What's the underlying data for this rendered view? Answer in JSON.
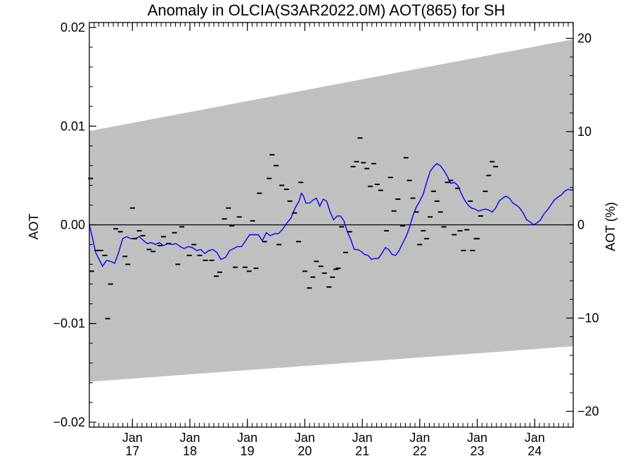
{
  "chart_data": {
    "type": "line",
    "title": "Anomaly in OLCIA(S3AR2022.0M) AOT(865) for SH",
    "xlabel": "",
    "ylabel": "AOT",
    "ylabel_right": "AOT (%)",
    "xlim": [
      2016.25,
      2024.67
    ],
    "ylim": [
      -0.0205,
      0.0205
    ],
    "ylim_right": [
      -21.7,
      21.7
    ],
    "y_ticks": [
      {
        "value": -0.02,
        "label": "−0.02"
      },
      {
        "value": -0.01,
        "label": "−0.01"
      },
      {
        "value": 0.0,
        "label": "0.00"
      },
      {
        "value": 0.01,
        "label": "0.01"
      },
      {
        "value": 0.02,
        "label": "0.02"
      }
    ],
    "y_minor_step": 0.002,
    "y_right_ticks": [
      {
        "value": -20,
        "label": "−20"
      },
      {
        "value": -10,
        "label": "−10"
      },
      {
        "value": 0,
        "label": "0"
      },
      {
        "value": 10,
        "label": "10"
      },
      {
        "value": 20,
        "label": "20"
      }
    ],
    "y_right_minor_step": 2,
    "x_ticks": [
      {
        "value": 2017.0,
        "month": "Jan",
        "year": "17"
      },
      {
        "value": 2018.0,
        "month": "Jan",
        "year": "18"
      },
      {
        "value": 2019.0,
        "month": "Jan",
        "year": "19"
      },
      {
        "value": 2020.0,
        "month": "Jan",
        "year": "20"
      },
      {
        "value": 2021.0,
        "month": "Jan",
        "year": "21"
      },
      {
        "value": 2022.0,
        "month": "Jan",
        "year": "22"
      },
      {
        "value": 2023.0,
        "month": "Jan",
        "year": "23"
      },
      {
        "value": 2024.0,
        "month": "Jan",
        "year": "24"
      }
    ],
    "x_minor_step": 0.08333,
    "envelope": {
      "color": "#c0c0c0",
      "upper": [
        [
          2016.25,
          0.0095
        ],
        [
          2024.67,
          0.0188
        ]
      ],
      "lower": [
        [
          2016.25,
          -0.0159
        ],
        [
          2024.67,
          -0.0123
        ]
      ]
    },
    "zero_line": 0.0,
    "series": [
      {
        "style": "line",
        "color": "#0000ff",
        "points": [
          [
            2016.25,
            0.0
          ],
          [
            2016.3,
            -0.0012
          ],
          [
            2016.36,
            -0.0028
          ],
          [
            2016.42,
            -0.0035
          ],
          [
            2016.48,
            -0.0042
          ],
          [
            2016.55,
            -0.0036
          ],
          [
            2016.62,
            -0.0037
          ],
          [
            2016.69,
            -0.0039
          ],
          [
            2016.76,
            -0.0028
          ],
          [
            2016.83,
            -0.0014
          ],
          [
            2016.9,
            -0.0012
          ],
          [
            2016.97,
            -0.0014
          ],
          [
            2017.04,
            -0.0014
          ],
          [
            2017.12,
            -0.0012
          ],
          [
            2017.19,
            -0.0016
          ],
          [
            2017.26,
            -0.0019
          ],
          [
            2017.33,
            -0.0018
          ],
          [
            2017.4,
            -0.002
          ],
          [
            2017.47,
            -0.0018
          ],
          [
            2017.54,
            -0.0021
          ],
          [
            2017.62,
            -0.0019
          ],
          [
            2017.69,
            -0.002
          ],
          [
            2017.76,
            -0.0019
          ],
          [
            2017.83,
            -0.0022
          ],
          [
            2017.9,
            -0.0024
          ],
          [
            2017.97,
            -0.0022
          ],
          [
            2018.04,
            -0.0023
          ],
          [
            2018.12,
            -0.0026
          ],
          [
            2018.19,
            -0.0025
          ],
          [
            2018.26,
            -0.0029
          ],
          [
            2018.33,
            -0.0026
          ],
          [
            2018.4,
            -0.0025
          ],
          [
            2018.47,
            -0.0028
          ],
          [
            2018.54,
            -0.0035
          ],
          [
            2018.62,
            -0.0033
          ],
          [
            2018.69,
            -0.0026
          ],
          [
            2018.76,
            -0.0024
          ],
          [
            2018.83,
            -0.0022
          ],
          [
            2018.9,
            -0.0022
          ],
          [
            2018.97,
            -0.0016
          ],
          [
            2019.04,
            -0.001
          ],
          [
            2019.12,
            -0.001
          ],
          [
            2019.19,
            -0.001
          ],
          [
            2019.26,
            -0.0016
          ],
          [
            2019.33,
            -0.0008
          ],
          [
            2019.4,
            -0.0011
          ],
          [
            2019.47,
            -0.0009
          ],
          [
            2019.54,
            -0.0009
          ],
          [
            2019.62,
            -0.0004
          ],
          [
            2019.69,
            0.0002
          ],
          [
            2019.76,
            0.0007
          ],
          [
            2019.83,
            0.0017
          ],
          [
            2019.9,
            0.0024
          ],
          [
            2019.94,
            0.0032
          ],
          [
            2019.97,
            0.003
          ],
          [
            2020.02,
            0.0022
          ],
          [
            2020.08,
            0.0022
          ],
          [
            2020.14,
            0.0025
          ],
          [
            2020.2,
            0.0027
          ],
          [
            2020.26,
            0.0019
          ],
          [
            2020.32,
            0.0026
          ],
          [
            2020.38,
            0.0024
          ],
          [
            2020.44,
            0.0013
          ],
          [
            2020.5,
            0.0005
          ],
          [
            2020.56,
            0.0009
          ],
          [
            2020.62,
            0.0009
          ],
          [
            2020.68,
            0.0004
          ],
          [
            2020.74,
            -0.0007
          ],
          [
            2020.8,
            -0.0015
          ],
          [
            2020.86,
            -0.0025
          ],
          [
            2020.92,
            -0.0025
          ],
          [
            2020.98,
            -0.0027
          ],
          [
            2021.04,
            -0.003
          ],
          [
            2021.1,
            -0.0031
          ],
          [
            2021.16,
            -0.0035
          ],
          [
            2021.22,
            -0.0034
          ],
          [
            2021.28,
            -0.0034
          ],
          [
            2021.34,
            -0.0029
          ],
          [
            2021.4,
            -0.0023
          ],
          [
            2021.46,
            -0.0025
          ],
          [
            2021.52,
            -0.003
          ],
          [
            2021.58,
            -0.0031
          ],
          [
            2021.64,
            -0.0026
          ],
          [
            2021.7,
            -0.0019
          ],
          [
            2021.76,
            -0.0012
          ],
          [
            2021.82,
            -0.0003
          ],
          [
            2021.88,
            0.0009
          ],
          [
            2021.94,
            0.0018
          ],
          [
            2022.0,
            0.0024
          ],
          [
            2022.06,
            0.0031
          ],
          [
            2022.12,
            0.0043
          ],
          [
            2022.18,
            0.0054
          ],
          [
            2022.24,
            0.0059
          ],
          [
            2022.3,
            0.0062
          ],
          [
            2022.36,
            0.006
          ],
          [
            2022.42,
            0.0055
          ],
          [
            2022.48,
            0.0049
          ],
          [
            2022.54,
            0.0042
          ],
          [
            2022.6,
            0.0043
          ],
          [
            2022.66,
            0.004
          ],
          [
            2022.72,
            0.0032
          ],
          [
            2022.78,
            0.0025
          ],
          [
            2022.84,
            0.002
          ],
          [
            2022.9,
            0.0017
          ],
          [
            2022.96,
            0.0016
          ],
          [
            2023.02,
            0.0014
          ],
          [
            2023.08,
            0.0015
          ],
          [
            2023.14,
            0.0016
          ],
          [
            2023.2,
            0.0015
          ],
          [
            2023.26,
            0.0013
          ],
          [
            2023.32,
            0.0017
          ],
          [
            2023.38,
            0.0024
          ],
          [
            2023.44,
            0.0027
          ],
          [
            2023.5,
            0.0029
          ],
          [
            2023.56,
            0.0027
          ],
          [
            2023.62,
            0.0022
          ],
          [
            2023.68,
            0.002
          ],
          [
            2023.74,
            0.0017
          ],
          [
            2023.8,
            0.0012
          ],
          [
            2023.86,
            0.0005
          ],
          [
            2023.92,
            0.0003
          ],
          [
            2023.98,
            0.0
          ],
          [
            2024.04,
            0.0002
          ],
          [
            2024.1,
            0.0005
          ],
          [
            2024.16,
            0.0011
          ],
          [
            2024.22,
            0.0015
          ],
          [
            2024.28,
            0.002
          ],
          [
            2024.34,
            0.0025
          ],
          [
            2024.4,
            0.0028
          ],
          [
            2024.46,
            0.003
          ],
          [
            2024.52,
            0.0034
          ],
          [
            2024.58,
            0.0036
          ],
          [
            2024.64,
            0.0035
          ],
          [
            2024.67,
            0.0036
          ]
        ]
      },
      {
        "style": "dash-marker",
        "color": "#000000",
        "points": [
          [
            2016.27,
            0.0047
          ],
          [
            2016.29,
            -0.0047
          ],
          [
            2016.38,
            -0.0026
          ],
          [
            2016.45,
            -0.0026
          ],
          [
            2016.52,
            -0.0031
          ],
          [
            2016.57,
            -0.0095
          ],
          [
            2016.62,
            -0.006
          ],
          [
            2016.71,
            -0.0004
          ],
          [
            2016.79,
            -0.0007
          ],
          [
            2016.87,
            -0.0032
          ],
          [
            2016.92,
            -0.004
          ],
          [
            2017.0,
            0.0017
          ],
          [
            2017.04,
            -0.0014
          ],
          [
            2017.12,
            -0.0006
          ],
          [
            2017.18,
            -0.0011
          ],
          [
            2017.29,
            -0.0025
          ],
          [
            2017.36,
            -0.0027
          ],
          [
            2017.48,
            -0.0021
          ],
          [
            2017.54,
            -0.0012
          ],
          [
            2017.63,
            -0.0019
          ],
          [
            2017.73,
            -0.0008
          ],
          [
            2017.79,
            -0.004
          ],
          [
            2017.86,
            -0.0002
          ],
          [
            2017.99,
            -0.0031
          ],
          [
            2018.07,
            -0.002
          ],
          [
            2018.17,
            -0.0031
          ],
          [
            2018.27,
            -0.0036
          ],
          [
            2018.38,
            -0.0036
          ],
          [
            2018.46,
            -0.0052
          ],
          [
            2018.52,
            -0.0048
          ],
          [
            2018.6,
            0.0006
          ],
          [
            2018.67,
            0.0017
          ],
          [
            2018.73,
            -0.0001
          ],
          [
            2018.79,
            -0.0043
          ],
          [
            2018.86,
            0.0008
          ],
          [
            2018.96,
            -0.0043
          ],
          [
            2019.03,
            -0.0047
          ],
          [
            2019.09,
            0.0004
          ],
          [
            2019.15,
            -0.0044
          ],
          [
            2019.21,
            0.0032
          ],
          [
            2019.3,
            -0.0017
          ],
          [
            2019.38,
            0.0047
          ],
          [
            2019.43,
            0.0071
          ],
          [
            2019.5,
            0.006
          ],
          [
            2019.55,
            -0.002
          ],
          [
            2019.6,
            0.004
          ],
          [
            2019.68,
            0.0036
          ],
          [
            2019.74,
            0.0024
          ],
          [
            2019.82,
            0.0012
          ],
          [
            2019.89,
            -0.0017
          ],
          [
            2019.93,
            0.0043
          ],
          [
            2020.0,
            -0.0047
          ],
          [
            2020.08,
            -0.0064
          ],
          [
            2020.14,
            -0.0053
          ],
          [
            2020.2,
            -0.0037
          ],
          [
            2020.28,
            -0.0042
          ],
          [
            2020.34,
            -0.0049
          ],
          [
            2020.42,
            -0.0063
          ],
          [
            2020.48,
            -0.0053
          ],
          [
            2020.54,
            -0.0045
          ],
          [
            2020.58,
            -0.0044
          ],
          [
            2020.64,
            -0.0002
          ],
          [
            2020.71,
            -0.0028
          ],
          [
            2020.78,
            -0.0007
          ],
          [
            2020.84,
            0.0059
          ],
          [
            2020.9,
            0.0064
          ],
          [
            2020.96,
            0.0088
          ],
          [
            2021.02,
            0.0063
          ],
          [
            2021.08,
            0.0057
          ],
          [
            2021.14,
            0.0039
          ],
          [
            2021.2,
            0.0062
          ],
          [
            2021.26,
            0.0041
          ],
          [
            2021.32,
            0.0035
          ],
          [
            2021.42,
            -0.0006
          ],
          [
            2021.49,
            0.0048
          ],
          [
            2021.55,
            0.0014
          ],
          [
            2021.62,
            0.0026
          ],
          [
            2021.7,
            -0.0001
          ],
          [
            2021.76,
            0.0068
          ],
          [
            2021.82,
            0.0045
          ],
          [
            2021.88,
            0.0027
          ],
          [
            2021.94,
            0.0013
          ],
          [
            2022.0,
            -0.002
          ],
          [
            2022.06,
            -0.0006
          ],
          [
            2022.12,
            -0.0014
          ],
          [
            2022.18,
            0.0008
          ],
          [
            2022.24,
            0.0034
          ],
          [
            2022.3,
            0.0024
          ],
          [
            2022.36,
            0.0013
          ],
          [
            2022.42,
            -0.0002
          ],
          [
            2022.48,
            0.0043
          ],
          [
            2022.54,
            0.0045
          ],
          [
            2022.6,
            -0.001
          ],
          [
            2022.66,
            0.0037
          ],
          [
            2022.7,
            -0.0006
          ],
          [
            2022.76,
            -0.0026
          ],
          [
            2022.82,
            -0.0005
          ],
          [
            2022.88,
            0.0024
          ],
          [
            2022.92,
            -0.0026
          ],
          [
            2022.98,
            -0.0014
          ],
          [
            2023.0,
            -0.0014
          ],
          [
            2023.06,
            0.0009
          ],
          [
            2023.14,
            0.0034
          ],
          [
            2023.2,
            0.005
          ],
          [
            2023.26,
            0.0064
          ],
          [
            2023.32,
            0.0059
          ]
        ]
      }
    ]
  }
}
